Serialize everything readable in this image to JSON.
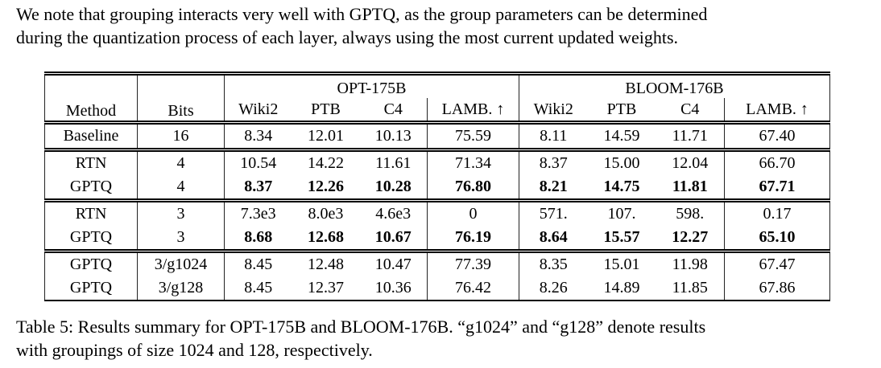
{
  "intro": {
    "line1": "We note that grouping interacts very well with GPTQ, as the group parameters can be determined",
    "line2": "during the quantization process of each layer, always using the most current updated weights."
  },
  "table": {
    "header": {
      "method": "Method",
      "bits": "Bits",
      "opt_group": "OPT-175B",
      "bloom_group": "BLOOM-176B",
      "opt_sub": [
        "Wiki2",
        "PTB",
        "C4",
        "LAMB. ↑"
      ],
      "bloom_sub": [
        "Wiki2",
        "PTB",
        "C4",
        "LAMB. ↑"
      ]
    },
    "row_groups": [
      {
        "rows": [
          {
            "method": "Baseline",
            "bits": "16",
            "bold": false,
            "values": [
              "8.34",
              "12.01",
              "10.13",
              "75.59",
              "8.11",
              "14.59",
              "11.71",
              "67.40"
            ]
          }
        ]
      },
      {
        "rows": [
          {
            "method": "RTN",
            "bits": "4",
            "bold": false,
            "values": [
              "10.54",
              "14.22",
              "11.61",
              "71.34",
              "8.37",
              "15.00",
              "12.04",
              "66.70"
            ]
          },
          {
            "method": "GPTQ",
            "bits": "4",
            "bold": true,
            "values": [
              "8.37",
              "12.26",
              "10.28",
              "76.80",
              "8.21",
              "14.75",
              "11.81",
              "67.71"
            ]
          }
        ]
      },
      {
        "rows": [
          {
            "method": "RTN",
            "bits": "3",
            "bold": false,
            "values": [
              "7.3e3",
              "8.0e3",
              "4.6e3",
              "0",
              "571.",
              "107.",
              "598.",
              "0.17"
            ]
          },
          {
            "method": "GPTQ",
            "bits": "3",
            "bold": true,
            "values": [
              "8.68",
              "12.68",
              "10.67",
              "76.19",
              "8.64",
              "15.57",
              "12.27",
              "65.10"
            ]
          }
        ]
      },
      {
        "rows": [
          {
            "method": "GPTQ",
            "bits": "3/g1024",
            "bold": false,
            "values": [
              "8.45",
              "12.48",
              "10.47",
              "77.39",
              "8.35",
              "15.01",
              "11.98",
              "67.47"
            ]
          },
          {
            "method": "GPTQ",
            "bits": "3/g128",
            "bold": false,
            "values": [
              "8.45",
              "12.37",
              "10.36",
              "76.42",
              "8.26",
              "14.89",
              "11.85",
              "67.86"
            ]
          }
        ]
      }
    ]
  },
  "caption": {
    "line1": "Table 5: Results summary for OPT-175B and BLOOM-176B. “g1024” and “g128” denote results",
    "line2": "with groupings of size 1024 and 128, respectively."
  },
  "colors": {
    "background": "#ffffff",
    "text": "#000000",
    "rule": "#000000"
  }
}
